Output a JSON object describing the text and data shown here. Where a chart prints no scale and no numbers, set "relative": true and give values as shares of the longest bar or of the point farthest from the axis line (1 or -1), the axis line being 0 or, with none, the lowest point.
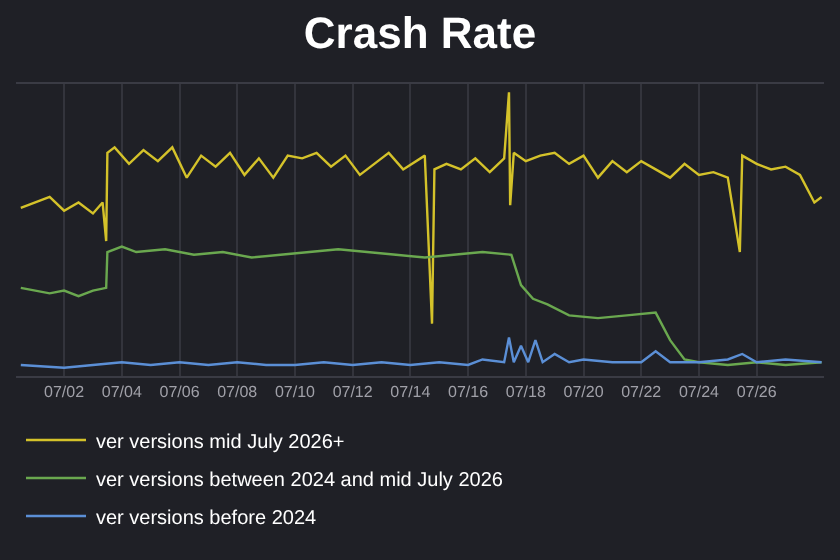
{
  "chart_data": {
    "type": "line",
    "title": "Crash Rate",
    "relative": true,
    "grid": "x",
    "legend": "bottom",
    "xlim": [
      "--06-30T08:00",
      "--07-28T08:00"
    ],
    "xticks": [
      {
        "value": "--07-02",
        "label": "07/02"
      },
      {
        "value": "--07-04",
        "label": "07/04"
      },
      {
        "value": "--07-06",
        "label": "07/06"
      },
      {
        "value": "--07-08",
        "label": "07/08"
      },
      {
        "value": "--07-10",
        "label": "07/10"
      },
      {
        "value": "--07-12",
        "label": "07/12"
      },
      {
        "value": "--07-14",
        "label": "07/14"
      },
      {
        "value": "--07-16",
        "label": "07/16"
      },
      {
        "value": "--07-18",
        "label": "07/18"
      },
      {
        "value": "--07-20",
        "label": "07/20"
      },
      {
        "value": "--07-22",
        "label": "07/22"
      },
      {
        "value": "--07-24",
        "label": "07/24"
      },
      {
        "value": "--07-26",
        "label": "07/26"
      }
    ],
    "series": [
      {
        "name": "ver versions mid July 2026+",
        "color": "#d4c22a",
        "x": [
          "--06-30T12:00",
          "--07-01T12:00",
          "--07-02T00:00",
          "--07-02T12:00",
          "--07-03T00:00",
          "--07-03T08:00",
          "--07-03T11:00",
          "--07-03T12:00",
          "--07-03T18:00",
          "--07-04T06:00",
          "--07-04T18:00",
          "--07-05T06:00",
          "--07-05T18:00",
          "--07-06T06:00",
          "--07-06T18:00",
          "--07-07T06:00",
          "--07-07T18:00",
          "--07-08T06:00",
          "--07-08T18:00",
          "--07-09T06:00",
          "--07-09T18:00",
          "--07-10T06:00",
          "--07-10T18:00",
          "--07-11T06:00",
          "--07-11T18:00",
          "--07-12T06:00",
          "--07-12T18:00",
          "--07-13T06:00",
          "--07-13T18:00",
          "--07-14T12:00",
          "--07-14T18:00",
          "--07-14T20:00",
          "--07-15T06:00",
          "--07-15T18:00",
          "--07-16T06:00",
          "--07-16T18:00",
          "--07-17T06:00",
          "--07-17T10:00",
          "--07-17T11:00",
          "--07-17T14:00",
          "--07-18T00:00",
          "--07-18T12:00",
          "--07-19T00:00",
          "--07-19T12:00",
          "--07-20T00:00",
          "--07-20T12:00",
          "--07-21T00:00",
          "--07-21T12:00",
          "--07-22T00:00",
          "--07-22T12:00",
          "--07-23T00:00",
          "--07-23T12:00",
          "--07-24T00:00",
          "--07-24T12:00",
          "--07-25T00:00",
          "--07-25T10:00",
          "--07-25T12:00",
          "--07-26T00:00",
          "--07-26T12:00",
          "--07-27T00:00",
          "--07-27T12:00",
          "--07-28T00:00",
          "--07-28T06:00"
        ],
        "values": [
          0.58,
          0.62,
          0.57,
          0.6,
          0.56,
          0.6,
          0.46,
          0.78,
          0.8,
          0.74,
          0.79,
          0.75,
          0.8,
          0.69,
          0.77,
          0.73,
          0.78,
          0.7,
          0.76,
          0.69,
          0.77,
          0.76,
          0.78,
          0.73,
          0.77,
          0.7,
          0.74,
          0.78,
          0.72,
          0.77,
          0.16,
          0.72,
          0.74,
          0.72,
          0.76,
          0.71,
          0.76,
          1.0,
          0.59,
          0.78,
          0.75,
          0.77,
          0.78,
          0.74,
          0.77,
          0.69,
          0.75,
          0.71,
          0.75,
          0.72,
          0.69,
          0.74,
          0.7,
          0.71,
          0.69,
          0.42,
          0.77,
          0.74,
          0.72,
          0.73,
          0.7,
          0.6,
          0.62
        ]
      },
      {
        "name": "ver versions between 2024 and mid July 2026",
        "color": "#6aa84f",
        "x": [
          "--06-30T12:00",
          "--07-01T12:00",
          "--07-02T00:00",
          "--07-02T12:00",
          "--07-03T00:00",
          "--07-03T11:00",
          "--07-03T12:00",
          "--07-04T00:00",
          "--07-04T12:00",
          "--07-05T12:00",
          "--07-06T12:00",
          "--07-07T12:00",
          "--07-08T12:00",
          "--07-09T12:00",
          "--07-10T12:00",
          "--07-11T12:00",
          "--07-12T12:00",
          "--07-13T12:00",
          "--07-14T12:00",
          "--07-15T12:00",
          "--07-16T12:00",
          "--07-17T12:00",
          "--07-17T20:00",
          "--07-18T06:00",
          "--07-18T18:00",
          "--07-19T12:00",
          "--07-20T12:00",
          "--07-21T12:00",
          "--07-22T12:00",
          "--07-23T00:00",
          "--07-23T12:00",
          "--07-24T00:00",
          "--07-25T00:00",
          "--07-26T00:00",
          "--07-27T00:00",
          "--07-28T06:00"
        ],
        "values": [
          0.29,
          0.27,
          0.28,
          0.26,
          0.28,
          0.29,
          0.42,
          0.44,
          0.42,
          0.43,
          0.41,
          0.42,
          0.4,
          0.41,
          0.42,
          0.43,
          0.42,
          0.41,
          0.4,
          0.41,
          0.42,
          0.41,
          0.3,
          0.25,
          0.23,
          0.19,
          0.18,
          0.19,
          0.2,
          0.1,
          0.03,
          0.02,
          0.01,
          0.02,
          0.01,
          0.02
        ]
      },
      {
        "name": "ver versions before 2024",
        "color": "#5b8fd6",
        "x": [
          "--06-30T12:00",
          "--07-02T00:00",
          "--07-03T00:00",
          "--07-04T00:00",
          "--07-05T00:00",
          "--07-06T00:00",
          "--07-07T00:00",
          "--07-08T00:00",
          "--07-09T00:00",
          "--07-10T00:00",
          "--07-11T00:00",
          "--07-12T00:00",
          "--07-13T00:00",
          "--07-14T00:00",
          "--07-15T00:00",
          "--07-16T00:00",
          "--07-16T12:00",
          "--07-17T06:00",
          "--07-17T10:00",
          "--07-17T14:00",
          "--07-17T20:00",
          "--07-18T02:00",
          "--07-18T08:00",
          "--07-18T14:00",
          "--07-19T00:00",
          "--07-19T12:00",
          "--07-20T00:00",
          "--07-21T00:00",
          "--07-22T00:00",
          "--07-22T12:00",
          "--07-23T00:00",
          "--07-24T00:00",
          "--07-25T00:00",
          "--07-25T12:00",
          "--07-26T00:00",
          "--07-27T00:00",
          "--07-28T06:00"
        ],
        "values": [
          0.01,
          0.0,
          0.01,
          0.02,
          0.01,
          0.02,
          0.01,
          0.02,
          0.01,
          0.01,
          0.02,
          0.01,
          0.02,
          0.01,
          0.02,
          0.01,
          0.03,
          0.02,
          0.11,
          0.02,
          0.08,
          0.02,
          0.1,
          0.02,
          0.05,
          0.02,
          0.03,
          0.02,
          0.02,
          0.06,
          0.02,
          0.02,
          0.03,
          0.05,
          0.02,
          0.03,
          0.02
        ]
      }
    ]
  }
}
